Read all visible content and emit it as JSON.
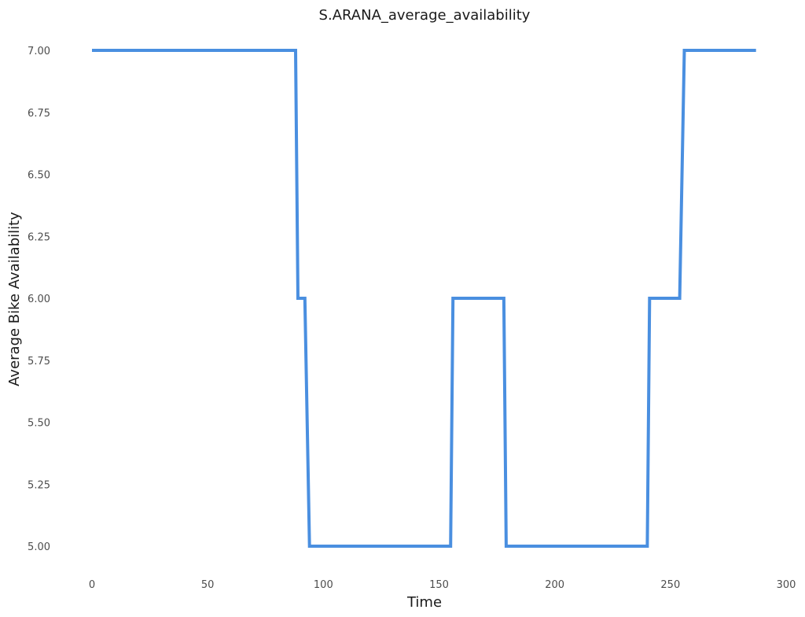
{
  "chart_data": {
    "type": "line",
    "title": "S.ARANA_average_availability",
    "xlabel": "Time",
    "ylabel": "Average Bike Availability",
    "xlim": [
      -5,
      300
    ],
    "ylim": [
      4.9,
      7.05
    ],
    "x_ticks": [
      0,
      50,
      100,
      150,
      200,
      250,
      300
    ],
    "y_ticks": [
      5.0,
      5.25,
      5.5,
      5.75,
      6.0,
      6.25,
      6.5,
      6.75,
      7.0
    ],
    "grid": false,
    "line_color": "#4a8fe0",
    "series": [
      {
        "x": [
          0,
          88,
          89,
          92,
          94,
          155,
          156,
          178,
          179,
          240,
          241,
          254,
          256,
          287
        ],
        "y": [
          7,
          7,
          6,
          6,
          5,
          5,
          6,
          6,
          5,
          5,
          6,
          6,
          7,
          7
        ]
      }
    ]
  }
}
